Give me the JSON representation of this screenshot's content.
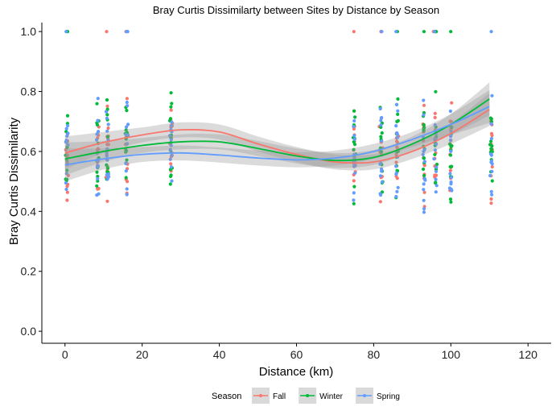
{
  "chart_data": {
    "type": "scatter",
    "title": "Bray Curtis Dissimilarty between Sites by Distance by Season",
    "xlabel": "Distance (km)",
    "ylabel": "Bray Curtis Dissimilarity",
    "xlim": [
      -6,
      126
    ],
    "ylim": [
      -0.04,
      1.03
    ],
    "x_ticks": [
      0,
      20,
      40,
      60,
      80,
      100,
      120
    ],
    "y_ticks": [
      0.0,
      0.2,
      0.4,
      0.6,
      0.8,
      1.0
    ],
    "grid": false,
    "legend": {
      "title": "Season",
      "position": "bottom"
    },
    "series": [
      {
        "name": "Fall",
        "color": "#F8766D",
        "distance_clusters": [
          0.5,
          8.5,
          11,
          16,
          27.5,
          75,
          82,
          86,
          93,
          96,
          100,
          110.5
        ],
        "smooth": {
          "x": [
            0,
            10,
            20,
            30,
            40,
            50,
            60,
            70,
            80,
            90,
            100,
            110
          ],
          "y": [
            0.595,
            0.63,
            0.655,
            0.672,
            0.665,
            0.625,
            0.59,
            0.565,
            0.565,
            0.6,
            0.66,
            0.74
          ]
        }
      },
      {
        "name": "Winter",
        "color": "#00BA38",
        "distance_clusters": [
          0.5,
          8.5,
          11,
          16,
          27.5,
          75,
          82,
          86,
          93,
          96,
          100,
          110.5
        ],
        "smooth": {
          "x": [
            0,
            10,
            20,
            30,
            40,
            50,
            60,
            70,
            80,
            90,
            100,
            110
          ],
          "y": [
            0.575,
            0.6,
            0.62,
            0.632,
            0.632,
            0.61,
            0.585,
            0.57,
            0.58,
            0.625,
            0.69,
            0.775
          ]
        }
      },
      {
        "name": "Spring",
        "color": "#619CFF",
        "distance_clusters": [
          0.5,
          8.5,
          11,
          16,
          27.5,
          75,
          82,
          86,
          93,
          96,
          100,
          110.5
        ],
        "smooth": {
          "x": [
            0,
            10,
            20,
            30,
            40,
            50,
            60,
            70,
            80,
            90,
            100,
            110
          ],
          "y": [
            0.555,
            0.575,
            0.59,
            0.595,
            0.588,
            0.578,
            0.572,
            0.578,
            0.6,
            0.64,
            0.69,
            0.75
          ]
        }
      }
    ]
  }
}
